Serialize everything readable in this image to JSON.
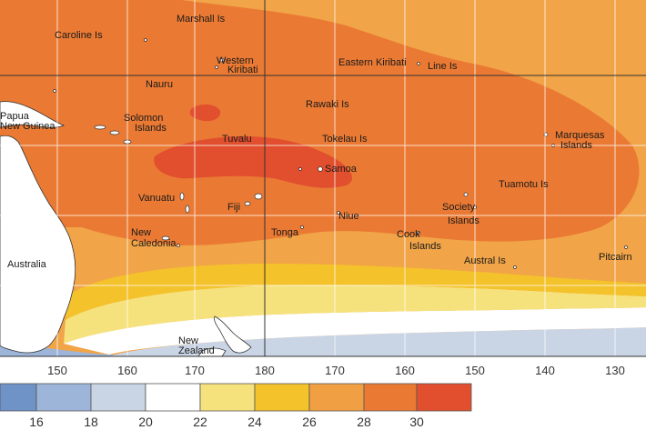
{
  "map": {
    "longitude_ticks": [
      "150",
      "160",
      "170",
      "180",
      "170",
      "160",
      "150",
      "140",
      "130"
    ],
    "labels": {
      "marshall": "Marshall Is",
      "caroline": "Caroline Is",
      "western_kiribati_1": "Western",
      "western_kiribati_2": "Kiribati",
      "eastern_kiribati": "Eastern Kiribati",
      "line_is": "Line Is",
      "nauru": "Nauru",
      "png_1": "Papua",
      "png_2": "New Guinea",
      "solomon_1": "Solomon",
      "solomon_2": "Islands",
      "rawaki": "Rawaki Is",
      "tuvalu": "Tuvalu",
      "tokelau": "Tokelau Is",
      "marquesas_1": "Marquesas",
      "marquesas_2": "Islands",
      "samoa": "Samoa",
      "tuamotu": "Tuamotu Is",
      "vanuatu": "Vanuatu",
      "fiji": "Fiji",
      "niue": "Niue",
      "society_1": "Society",
      "society_2": "Islands",
      "new_caledonia_1": "New",
      "new_caledonia_2": "Caledonia",
      "tonga": "Tonga",
      "cook_1": "Cook",
      "cook_2": "Islands",
      "australia": "Australia",
      "austral": "Austral Is",
      "pitcairn": "Pitcairn",
      "new_zealand_1": "New",
      "new_zealand_2": "Zealand"
    }
  },
  "colorbar": {
    "ticks": [
      "16",
      "18",
      "20",
      "22",
      "24",
      "26",
      "28",
      "30"
    ],
    "colors": [
      "#6f93c6",
      "#9db5d9",
      "#c9d4e4",
      "#ffffff",
      "#f6e27c",
      "#f4c22b",
      "#f0a043",
      "#ea7a33",
      "#e14f2e"
    ]
  }
}
